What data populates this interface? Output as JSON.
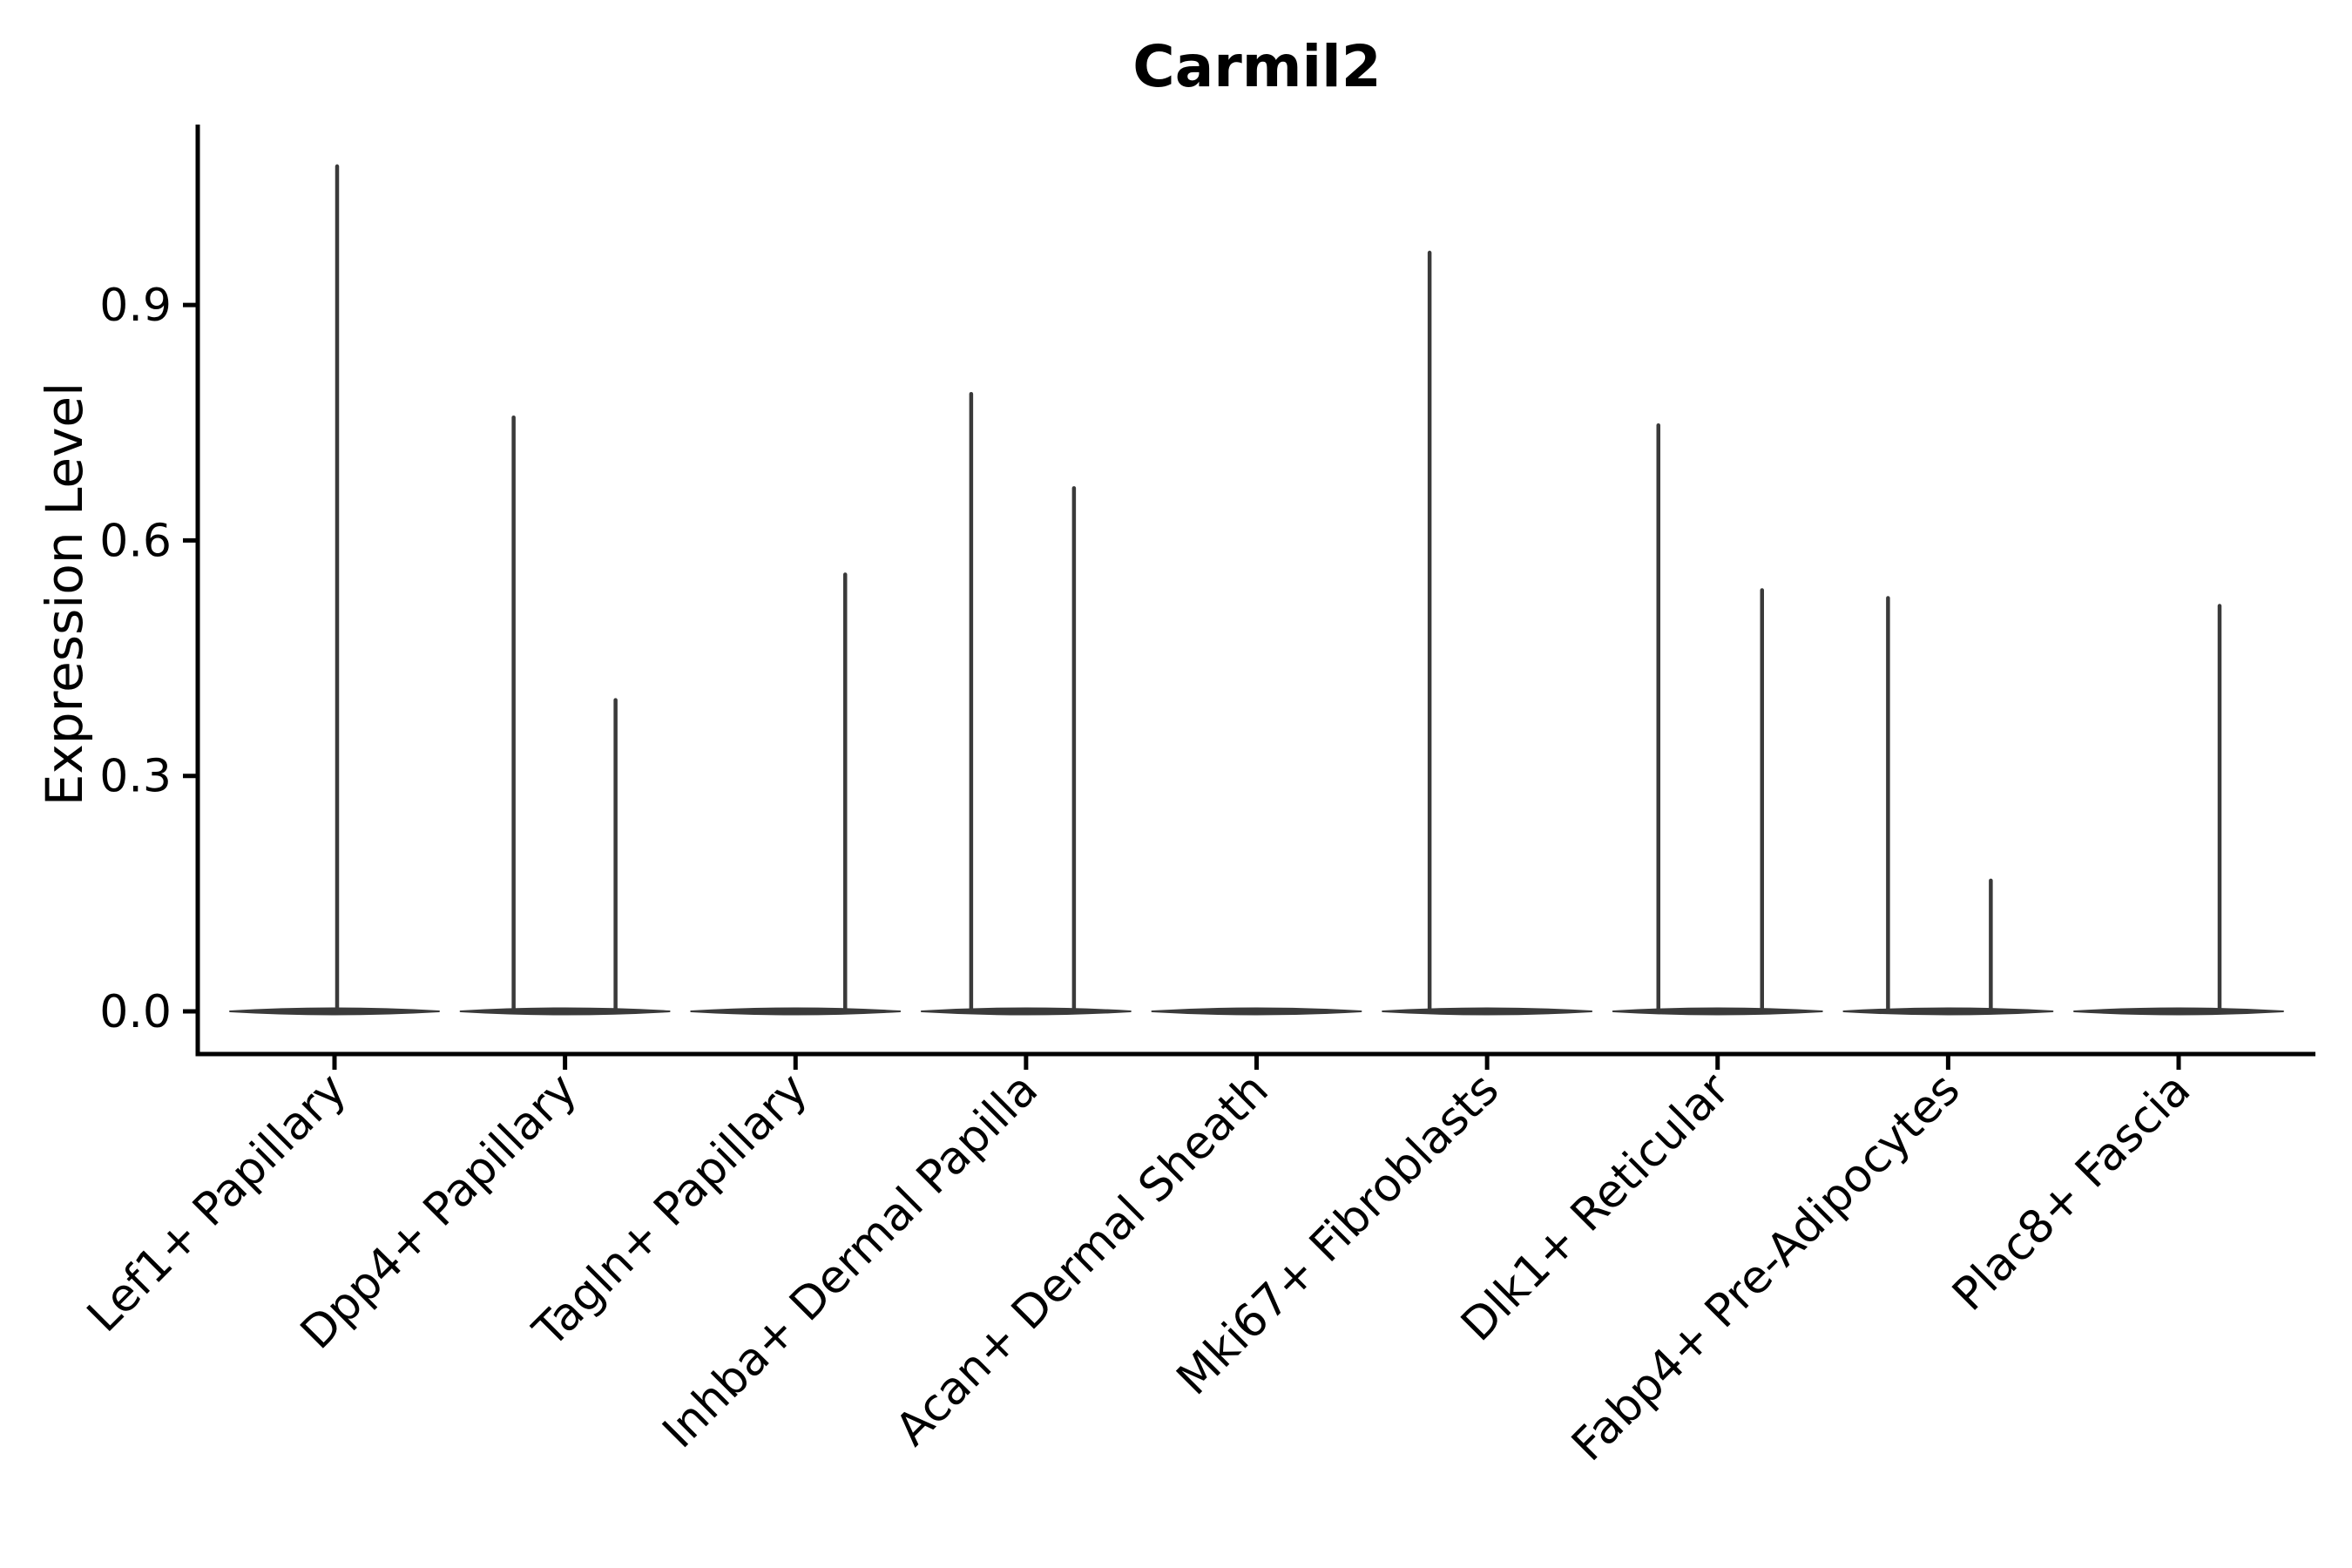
{
  "chart_data": {
    "type": "violin",
    "title": "Carmil2",
    "ylabel": "Expression Level",
    "xlabel": "",
    "ylim": [
      0,
      1.13
    ],
    "grid": false,
    "legend": "none",
    "y_ticks": [
      {
        "label": "0.0",
        "value": 0.0
      },
      {
        "label": "0.3",
        "value": 0.3
      },
      {
        "label": "0.6",
        "value": 0.6
      },
      {
        "label": "0.9",
        "value": 0.9
      }
    ],
    "colors": {
      "axis": "#000000",
      "violin": "#3a3a3a",
      "text": "#000000"
    },
    "categories": [
      {
        "label": "Lef1+ Papillary",
        "spikes": [
          {
            "value": 1.08,
            "dx": 3
          }
        ]
      },
      {
        "label": "Dpp4+ Papillary",
        "spikes": [
          {
            "value": 0.76,
            "dx": -59
          },
          {
            "value": 0.4,
            "dx": 58
          }
        ]
      },
      {
        "label": "Tagln+ Papillary",
        "spikes": [
          {
            "value": 0.56,
            "dx": 57
          }
        ]
      },
      {
        "label": "Inhba+ Dermal Papilla",
        "spikes": [
          {
            "value": 0.79,
            "dx": -63
          },
          {
            "value": 0.67,
            "dx": 55
          }
        ]
      },
      {
        "label": "Acan+ Dermal Sheath",
        "spikes": []
      },
      {
        "label": "Mki67+ Fibroblasts",
        "spikes": [
          {
            "value": 0.97,
            "dx": -66
          }
        ]
      },
      {
        "label": "Dlk1+ Reticular",
        "spikes": [
          {
            "value": 0.75,
            "dx": -68
          },
          {
            "value": 0.54,
            "dx": 51
          }
        ]
      },
      {
        "label": "Fabp4+ Pre-Adipocytes",
        "spikes": [
          {
            "value": 0.53,
            "dx": -69
          },
          {
            "value": 0.17,
            "dx": 49
          }
        ]
      },
      {
        "label": "Plac8+ Fascia",
        "spikes": [
          {
            "value": 0.52,
            "dx": 47
          }
        ]
      }
    ]
  }
}
